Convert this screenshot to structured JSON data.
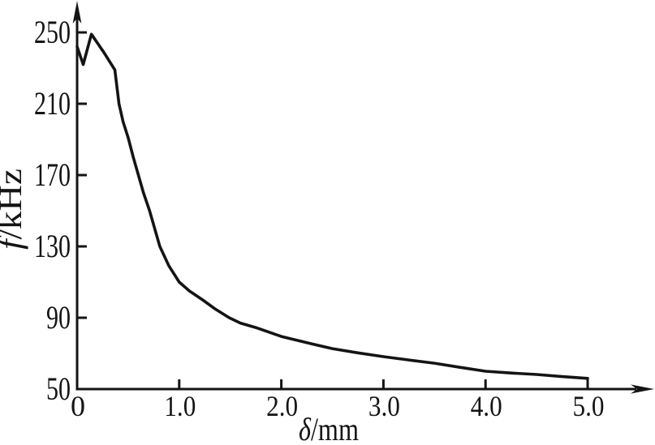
{
  "figure": {
    "background": "#ffffff",
    "ink_color": "#141414"
  },
  "chart_data": {
    "type": "line",
    "title": "",
    "xlabel": "δ/mm",
    "xlabel_parts": {
      "italic": "δ",
      "rest": "/mm"
    },
    "ylabel": "f/kHz",
    "ylabel_parts": {
      "italic": "f",
      "rest": "/kHz"
    },
    "xlim": [
      0,
      5.64
    ],
    "ylim": [
      50,
      267
    ],
    "grid": false,
    "legend": null,
    "x_ticks": [
      {
        "value": 0,
        "label": "0"
      },
      {
        "value": 1.0,
        "label": "1.0"
      },
      {
        "value": 2.0,
        "label": "2.0"
      },
      {
        "value": 3.0,
        "label": "3.0"
      },
      {
        "value": 4.0,
        "label": "4.0"
      },
      {
        "value": 5.0,
        "label": "5.0"
      }
    ],
    "y_ticks": [
      {
        "value": 50,
        "label": "50"
      },
      {
        "value": 90,
        "label": "90"
      },
      {
        "value": 130,
        "label": "130"
      },
      {
        "value": 170,
        "label": "170"
      },
      {
        "value": 210,
        "label": "210"
      },
      {
        "value": 250,
        "label": "250"
      }
    ],
    "series": [
      {
        "name": "f-vs-delta",
        "points": [
          [
            0.0,
            242
          ],
          [
            0.06,
            232
          ],
          [
            0.14,
            249
          ],
          [
            0.26,
            239
          ],
          [
            0.37,
            229
          ],
          [
            0.41,
            210
          ],
          [
            0.45,
            200
          ],
          [
            0.5,
            191
          ],
          [
            0.55,
            180
          ],
          [
            0.6,
            170
          ],
          [
            0.65,
            160
          ],
          [
            0.71,
            150
          ],
          [
            0.76,
            140
          ],
          [
            0.81,
            130
          ],
          [
            0.9,
            119
          ],
          [
            1.0,
            110
          ],
          [
            1.1,
            105
          ],
          [
            1.23,
            100
          ],
          [
            1.35,
            95
          ],
          [
            1.49,
            90
          ],
          [
            1.6,
            87
          ],
          [
            1.75,
            84.5
          ],
          [
            2.0,
            79.5
          ],
          [
            2.25,
            76
          ],
          [
            2.5,
            72.7
          ],
          [
            2.75,
            70.3
          ],
          [
            3.0,
            68.2
          ],
          [
            3.25,
            66.3
          ],
          [
            3.5,
            64.5
          ],
          [
            3.75,
            62.2
          ],
          [
            4.0,
            60
          ],
          [
            4.25,
            59
          ],
          [
            4.5,
            58.2
          ],
          [
            4.75,
            57
          ],
          [
            5.0,
            56
          ]
        ]
      }
    ]
  }
}
